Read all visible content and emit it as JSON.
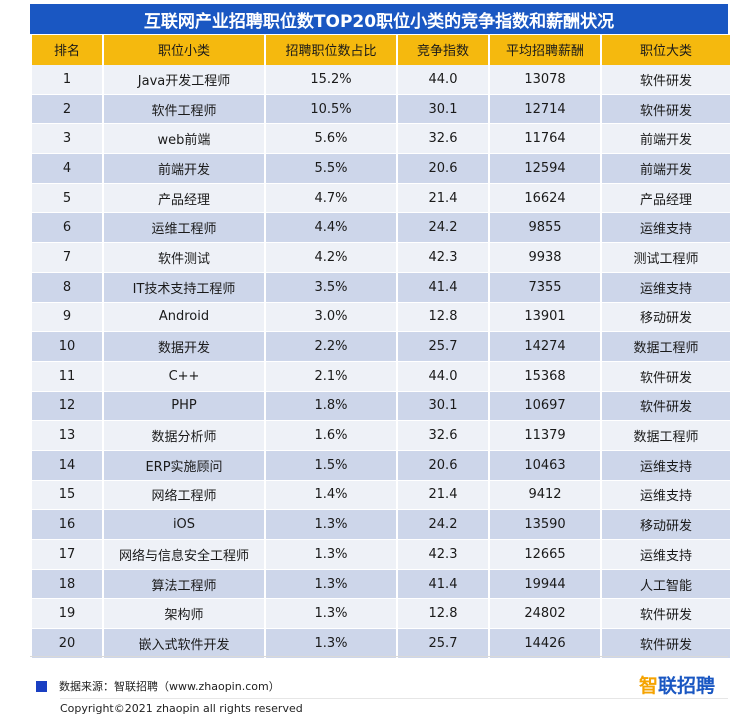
{
  "title": "互联网产业招聘职位数TOP20职位小类的竞争指数和薪酬状况",
  "table": {
    "headers": [
      "排名",
      "职位小类",
      "招聘职位数占比",
      "竞争指数",
      "平均招聘薪酬",
      "职位大类"
    ],
    "rows": [
      [
        "1",
        "Java开发工程师",
        "15.2%",
        "44.0",
        "13078",
        "软件研发"
      ],
      [
        "2",
        "软件工程师",
        "10.5%",
        "30.1",
        "12714",
        "软件研发"
      ],
      [
        "3",
        "web前端",
        "5.6%",
        "32.6",
        "11764",
        "前端开发"
      ],
      [
        "4",
        "前端开发",
        "5.5%",
        "20.6",
        "12594",
        "前端开发"
      ],
      [
        "5",
        "产品经理",
        "4.7%",
        "21.4",
        "16624",
        "产品经理"
      ],
      [
        "6",
        "运维工程师",
        "4.4%",
        "24.2",
        "9855",
        "运维支持"
      ],
      [
        "7",
        "软件测试",
        "4.2%",
        "42.3",
        "9938",
        "测试工程师"
      ],
      [
        "8",
        "IT技术支持工程师",
        "3.5%",
        "41.4",
        "7355",
        "运维支持"
      ],
      [
        "9",
        "Android",
        "3.0%",
        "12.8",
        "13901",
        "移动研发"
      ],
      [
        "10",
        "数据开发",
        "2.2%",
        "25.7",
        "14274",
        "数据工程师"
      ],
      [
        "11",
        "C++",
        "2.1%",
        "44.0",
        "15368",
        "软件研发"
      ],
      [
        "12",
        "PHP",
        "1.8%",
        "30.1",
        "10697",
        "软件研发"
      ],
      [
        "13",
        "数据分析师",
        "1.6%",
        "32.6",
        "11379",
        "数据工程师"
      ],
      [
        "14",
        "ERP实施顾问",
        "1.5%",
        "20.6",
        "10463",
        "运维支持"
      ],
      [
        "15",
        "网络工程师",
        "1.4%",
        "21.4",
        "9412",
        "运维支持"
      ],
      [
        "16",
        "iOS",
        "1.3%",
        "24.2",
        "13590",
        "移动研发"
      ],
      [
        "17",
        "网络与信息安全工程师",
        "1.3%",
        "42.3",
        "12665",
        "运维支持"
      ],
      [
        "18",
        "算法工程师",
        "1.3%",
        "41.4",
        "19944",
        "人工智能"
      ],
      [
        "19",
        "架构师",
        "1.3%",
        "12.8",
        "24802",
        "软件研发"
      ],
      [
        "20",
        "嵌入式软件开发",
        "1.3%",
        "25.7",
        "14426",
        "软件研发"
      ]
    ]
  },
  "footer": {
    "source": "数据来源：智联招聘（www.zhaopin.com）",
    "logo_mark": "智",
    "logo_text": "联招聘",
    "copyright": "Copyright©2021 zhaopin all rights reserved"
  },
  "colors": {
    "title_bg": "#1a57c2",
    "header_bg": "#f5b90e",
    "row_light": "#eef1f7",
    "row_dark": "#cdd6ea",
    "source_marker": "#1a3fc2"
  }
}
